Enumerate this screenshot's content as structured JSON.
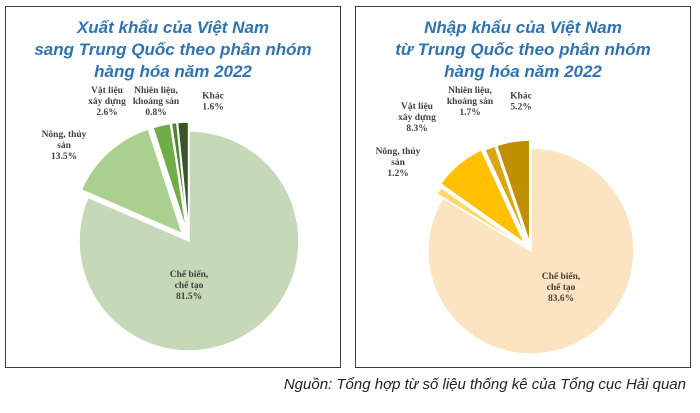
{
  "source": "Nguồn: Tổng hợp từ số liệu thống kê của Tổng cục Hải quan",
  "chart_data": [
    {
      "type": "pie",
      "title_lines": [
        "Xuất khẩu của Việt Nam",
        "sang Trung Quốc theo phân nhóm",
        "hàng hóa năm 2022"
      ],
      "slices": [
        {
          "label_lines": [
            "Chế biến,",
            "chế tạo"
          ],
          "value": 81.5,
          "value_text": "81.5%",
          "color": "#c5d9b8"
        },
        {
          "label_lines": [
            "Nông, thủy",
            "sản"
          ],
          "value": 13.5,
          "value_text": "13.5%",
          "color": "#a9d08e"
        },
        {
          "label_lines": [
            "Vật liệu",
            "xây dựng"
          ],
          "value": 2.6,
          "value_text": "2.6%",
          "color": "#70ad47"
        },
        {
          "label_lines": [
            "Nhiên liệu,",
            "khoáng sản"
          ],
          "value": 0.8,
          "value_text": "0.8%",
          "color": "#548235"
        },
        {
          "label_lines": [
            "Khác"
          ],
          "value": 1.6,
          "value_text": "1.6%",
          "color": "#375623"
        }
      ]
    },
    {
      "type": "pie",
      "title_lines": [
        "Nhập khẩu của Việt Nam",
        "từ Trung Quốc theo phân nhóm",
        "hàng hóa năm 2022"
      ],
      "slices": [
        {
          "label_lines": [
            "Chế biến,",
            "chế tạo"
          ],
          "value": 83.6,
          "value_text": "83.6%",
          "color": "#fce4c0"
        },
        {
          "label_lines": [
            "Nông, thủy",
            "sản"
          ],
          "value": 1.2,
          "value_text": "1.2%",
          "color": "#ffd966"
        },
        {
          "label_lines": [
            "Vật liệu",
            "xây dựng"
          ],
          "value": 8.3,
          "value_text": "8.3%",
          "color": "#ffc000"
        },
        {
          "label_lines": [
            "Nhiên liệu,",
            "khoáng sản"
          ],
          "value": 1.7,
          "value_text": "1.7%",
          "color": "#dba514"
        },
        {
          "label_lines": [
            "Khác"
          ],
          "value": 5.2,
          "value_text": "5.2%",
          "color": "#bf8f00"
        }
      ]
    }
  ]
}
